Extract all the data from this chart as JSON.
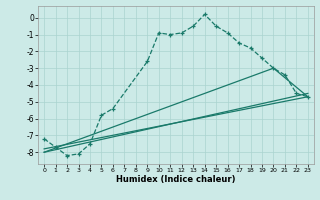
{
  "xlabel": "Humidex (Indice chaleur)",
  "bg_color": "#cceae7",
  "grid_color": "#aad4d0",
  "line_color": "#1a7a6a",
  "xlim": [
    -0.5,
    23.5
  ],
  "ylim": [
    -8.7,
    0.7
  ],
  "yticks": [
    0,
    -1,
    -2,
    -3,
    -4,
    -5,
    -6,
    -7,
    -8
  ],
  "xticks": [
    0,
    1,
    2,
    3,
    4,
    5,
    6,
    7,
    8,
    9,
    10,
    11,
    12,
    13,
    14,
    15,
    16,
    17,
    18,
    19,
    20,
    21,
    22,
    23
  ],
  "line1_x": [
    0,
    1,
    2,
    3,
    4,
    5,
    6,
    9,
    10,
    11,
    12,
    13,
    14,
    15,
    16,
    17,
    18,
    19,
    20,
    21,
    22,
    23
  ],
  "line1_y": [
    -7.2,
    -7.7,
    -8.2,
    -8.1,
    -7.5,
    -5.8,
    -5.4,
    -2.6,
    -0.9,
    -1.0,
    -0.9,
    -0.5,
    0.2,
    -0.5,
    -0.9,
    -1.5,
    -1.8,
    -2.4,
    -3.0,
    -3.4,
    -4.5,
    -4.7
  ],
  "line2_x": [
    0,
    23
  ],
  "line2_y": [
    -7.8,
    -4.7
  ],
  "line3_x": [
    0,
    23
  ],
  "line3_y": [
    -8.0,
    -4.5
  ],
  "line4_x": [
    0,
    20,
    23
  ],
  "line4_y": [
    -8.0,
    -3.0,
    -4.7
  ]
}
